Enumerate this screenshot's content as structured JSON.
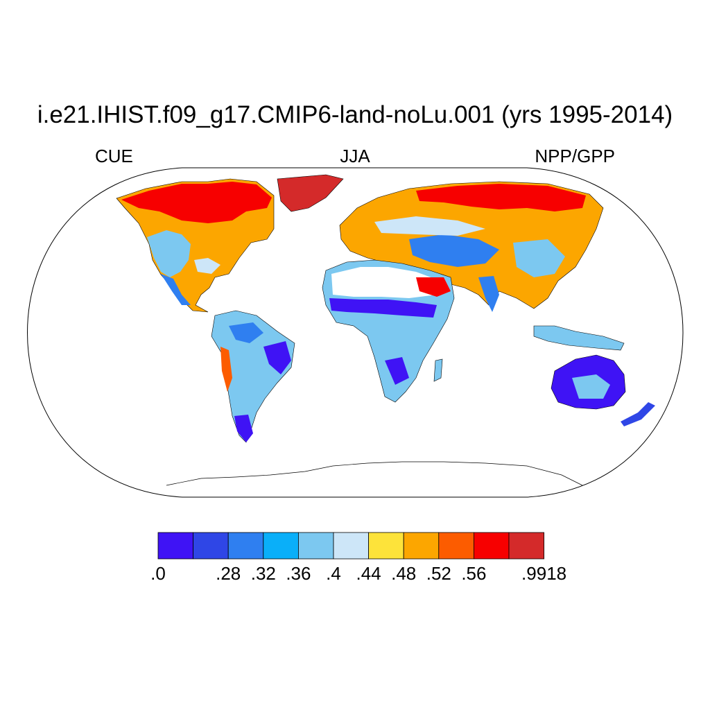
{
  "title": "i.e21.IHIST.f09_g17.CMIP6-land-noLu.001 (yrs 1995-2014)",
  "subtitle_left": "CUE",
  "subtitle_center": "JJA",
  "subtitle_right": "NPP/GPP",
  "colorbar": {
    "colors": [
      "#3f13f5",
      "#2f46e6",
      "#2f7ff0",
      "#0aaff9",
      "#7cc8f0",
      "#cde6f8",
      "#fde33a",
      "#fca600",
      "#fc5c00",
      "#f70000",
      "#d42a2a"
    ],
    "labels": [
      ".0",
      "",
      ".28",
      ".32",
      ".36",
      ".4",
      ".44",
      ".48",
      ".52",
      ".56",
      "",
      ".9918"
    ]
  }
}
